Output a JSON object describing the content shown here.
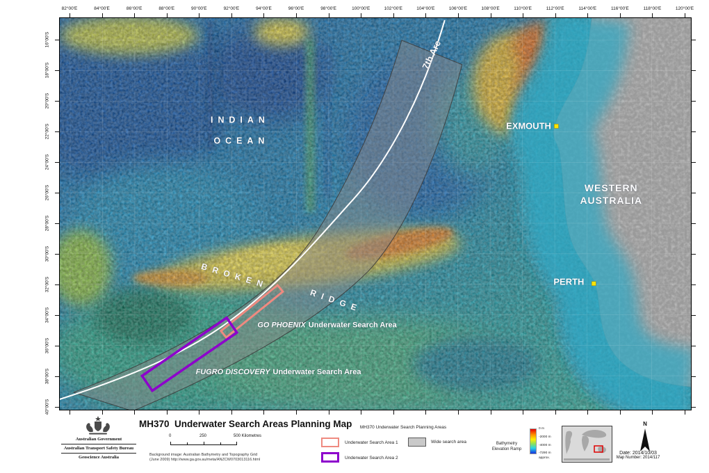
{
  "map": {
    "top_axis": [
      "82°00'E",
      "84°00'E",
      "86°00'E",
      "88°00'E",
      "90°00'E",
      "92°00'E",
      "94°00'E",
      "96°00'E",
      "98°00'E",
      "100°00'E",
      "102°00'E",
      "104°00'E",
      "106°00'E",
      "108°00'E",
      "110°00'E",
      "112°00'E",
      "114°00'E",
      "116°00'E",
      "118°00'E",
      "120°00'E"
    ],
    "left_axis": [
      "16°00'S",
      "18°00'S",
      "20°00'S",
      "22°00'S",
      "24°00'S",
      "26°00'S",
      "28°00'S",
      "30°00'S",
      "32°00'S",
      "34°00'S",
      "36°00'S",
      "38°00'S",
      "40°00'S"
    ],
    "labels": {
      "ocean_line1": "INDIAN",
      "ocean_line2": "OCEAN",
      "arc": "7th Arc",
      "ridge_word1": "BROKEN",
      "ridge_word2": "RIDGE",
      "go_phoenix_name": "GO PHOENIX",
      "go_phoenix_rest": "Underwater Search Area",
      "fugro_name": "FUGRO DISCOVERY",
      "fugro_rest": "Underwater Search Area",
      "exmouth": "EXMOUTH",
      "perth": "PERTH",
      "wa_line1": "WESTERN",
      "wa_line2": "AUSTRALIA"
    }
  },
  "footer": {
    "gov_line1": "Australian Government",
    "gov_line2": "Australian Transport Safety Bureau",
    "gov_line3": "Geoscience Australia",
    "title": "MH370  Underwater Search Areas Planning Map",
    "scale": {
      "start": "0",
      "mid": "250",
      "end": "500 Kilometres"
    },
    "background_note_line1": "Background image: Australian Bathymetry and Topography Grid",
    "background_note_line2": "(June 2009) http://www.ga.gov.au/meta/ANZCW0703013116.html",
    "legend": {
      "header": "MH370 Underwater Search Planning Areas",
      "items": [
        {
          "label": "Underwater Search Area 1",
          "color": "#ef8a80",
          "fill": "none"
        },
        {
          "label": "Underwater Search Area 2",
          "color": "#8d00cc",
          "fill": "none"
        },
        {
          "label": "Wide search area",
          "color": "#595959",
          "fill": "#c9c9c9"
        }
      ]
    },
    "ramp": {
      "title_line1": "Bathymetry",
      "title_line2": "Elevation Ramp",
      "ticks": [
        "0 m",
        "-2000 m",
        "-4000 m",
        "-7290 m",
        "approx."
      ]
    },
    "north_label": "N",
    "date": "Date: 2014/10/03",
    "map_number": "Map Number: 2014/117"
  },
  "colors": {
    "ocean_deep": "#1a5fae",
    "ocean_teal": "#2ba4a8",
    "ridge_yellow": "#e0cd48",
    "ridge_orange": "#e2862e",
    "land_grey": "#bdbdbd",
    "wide_area_fill": "#8a8a8a",
    "arc_line": "#ffffff",
    "area1_outline": "#ef8a80",
    "area2_outline": "#8d00cc",
    "town_dot": "#ffe400"
  }
}
